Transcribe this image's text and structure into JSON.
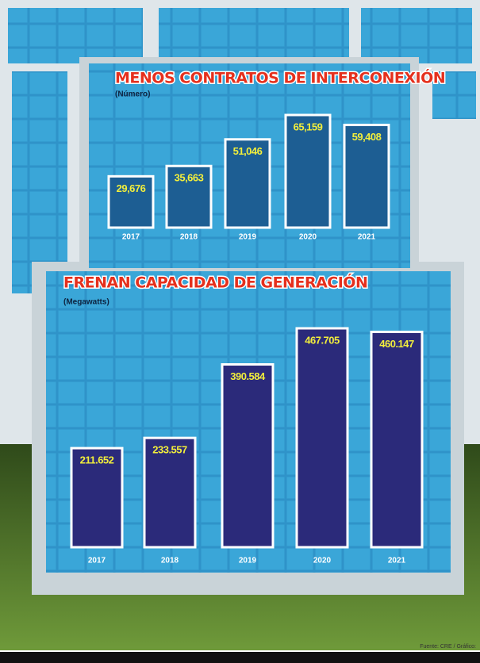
{
  "chart_data": [
    {
      "type": "bar",
      "title": "MENOS CONTRATOS DE INTERCONEXIÓN",
      "subtitle": "(Número)",
      "categories": [
        "2017",
        "2018",
        "2019",
        "2020",
        "2021"
      ],
      "values": [
        29676,
        35663,
        51046,
        65159,
        59408
      ],
      "value_labels": [
        "29,676",
        "35,663",
        "51,046",
        "65,159",
        "59,408"
      ],
      "color": "#1d5e93",
      "label_color": "#f2ee3c"
    },
    {
      "type": "bar",
      "title": "FRENAN CAPACIDAD DE GENERACIÓN",
      "subtitle": "(Megawatts)",
      "categories": [
        "2017",
        "2018",
        "2019",
        "2020",
        "2021"
      ],
      "values": [
        211.652,
        233.557,
        390.584,
        467.705,
        460.147
      ],
      "color": "#2b2a7a",
      "label_color": "#f2ee3c"
    }
  ],
  "source": "Fuente: CRE / Gráfico:"
}
